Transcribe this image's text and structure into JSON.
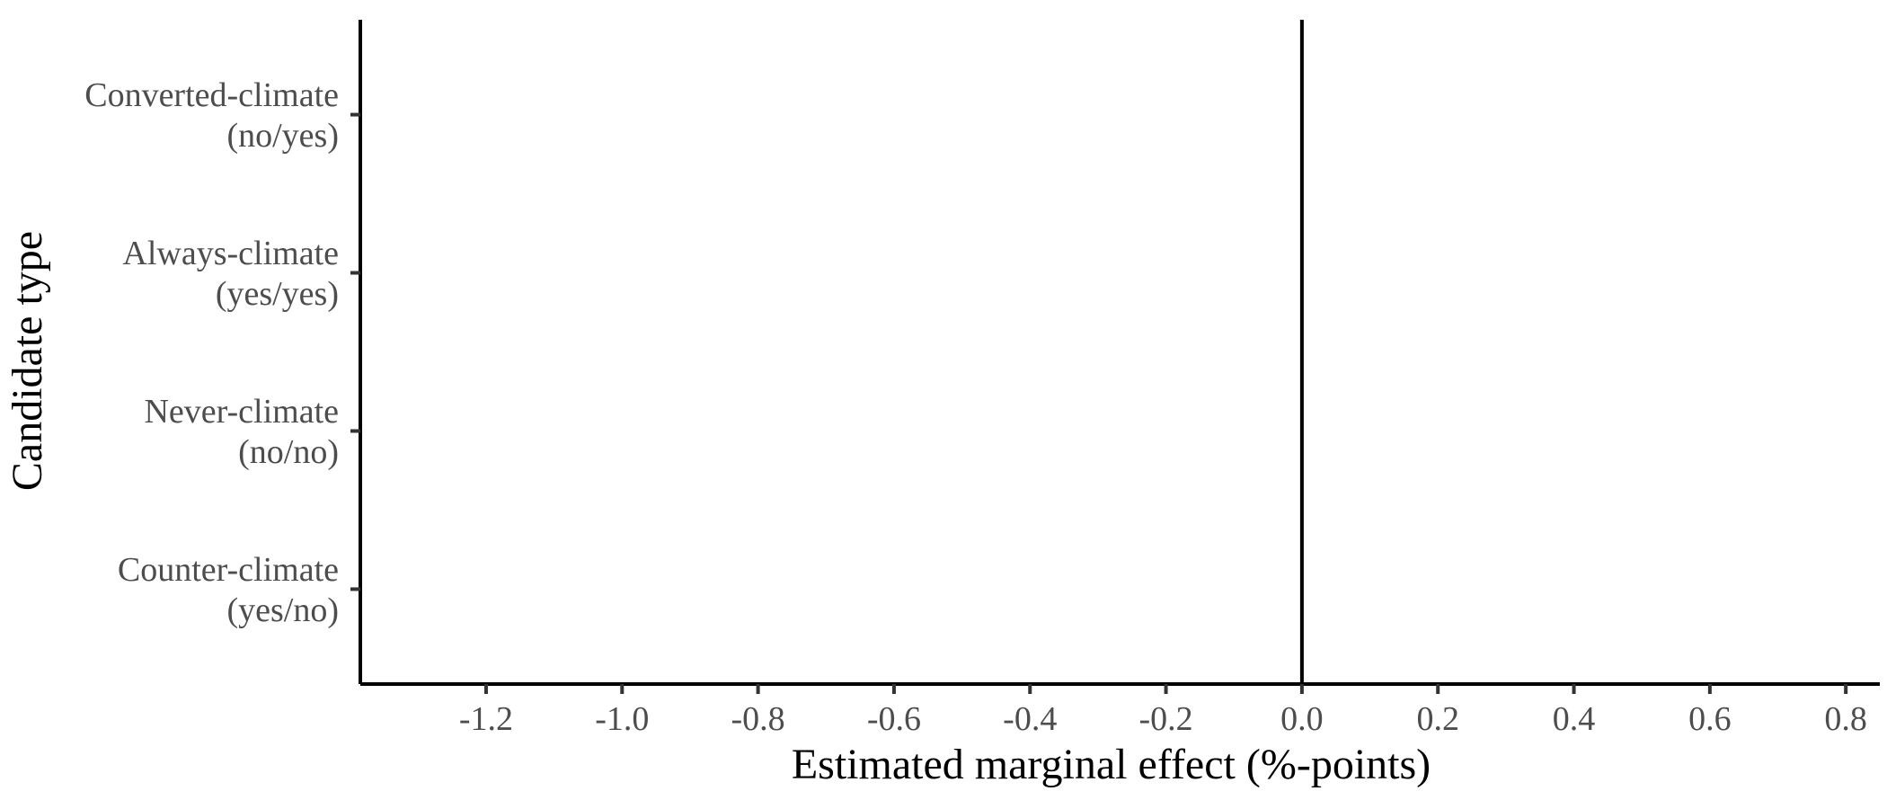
{
  "chart_data": {
    "type": "scatter",
    "title": "",
    "xlabel": "Estimated marginal effect (%-points)",
    "ylabel": "Candidate type",
    "xlim": [
      -1.385,
      0.85
    ],
    "x_ticks": [
      -1.2,
      -1.0,
      -0.8,
      -0.6,
      -0.4,
      -0.2,
      0.0,
      0.2,
      0.4,
      0.6,
      0.8
    ],
    "x_tick_labels": [
      "-1.2",
      "-1.0",
      "-0.8",
      "-0.6",
      "-0.4",
      "-0.2",
      "0.0",
      "0.2",
      "0.4",
      "0.6",
      "0.8"
    ],
    "categories": [
      {
        "lines": [
          "Counter-climate",
          "(yes/no)"
        ]
      },
      {
        "lines": [
          "Never-climate",
          "(no/no)"
        ]
      },
      {
        "lines": [
          "Always-climate",
          "(yes/yes)"
        ]
      },
      {
        "lines": [
          "Converted-climate",
          "(no/yes)"
        ]
      }
    ],
    "reference_line_x": 0.0,
    "series": [],
    "grid": false,
    "legend": "none"
  }
}
